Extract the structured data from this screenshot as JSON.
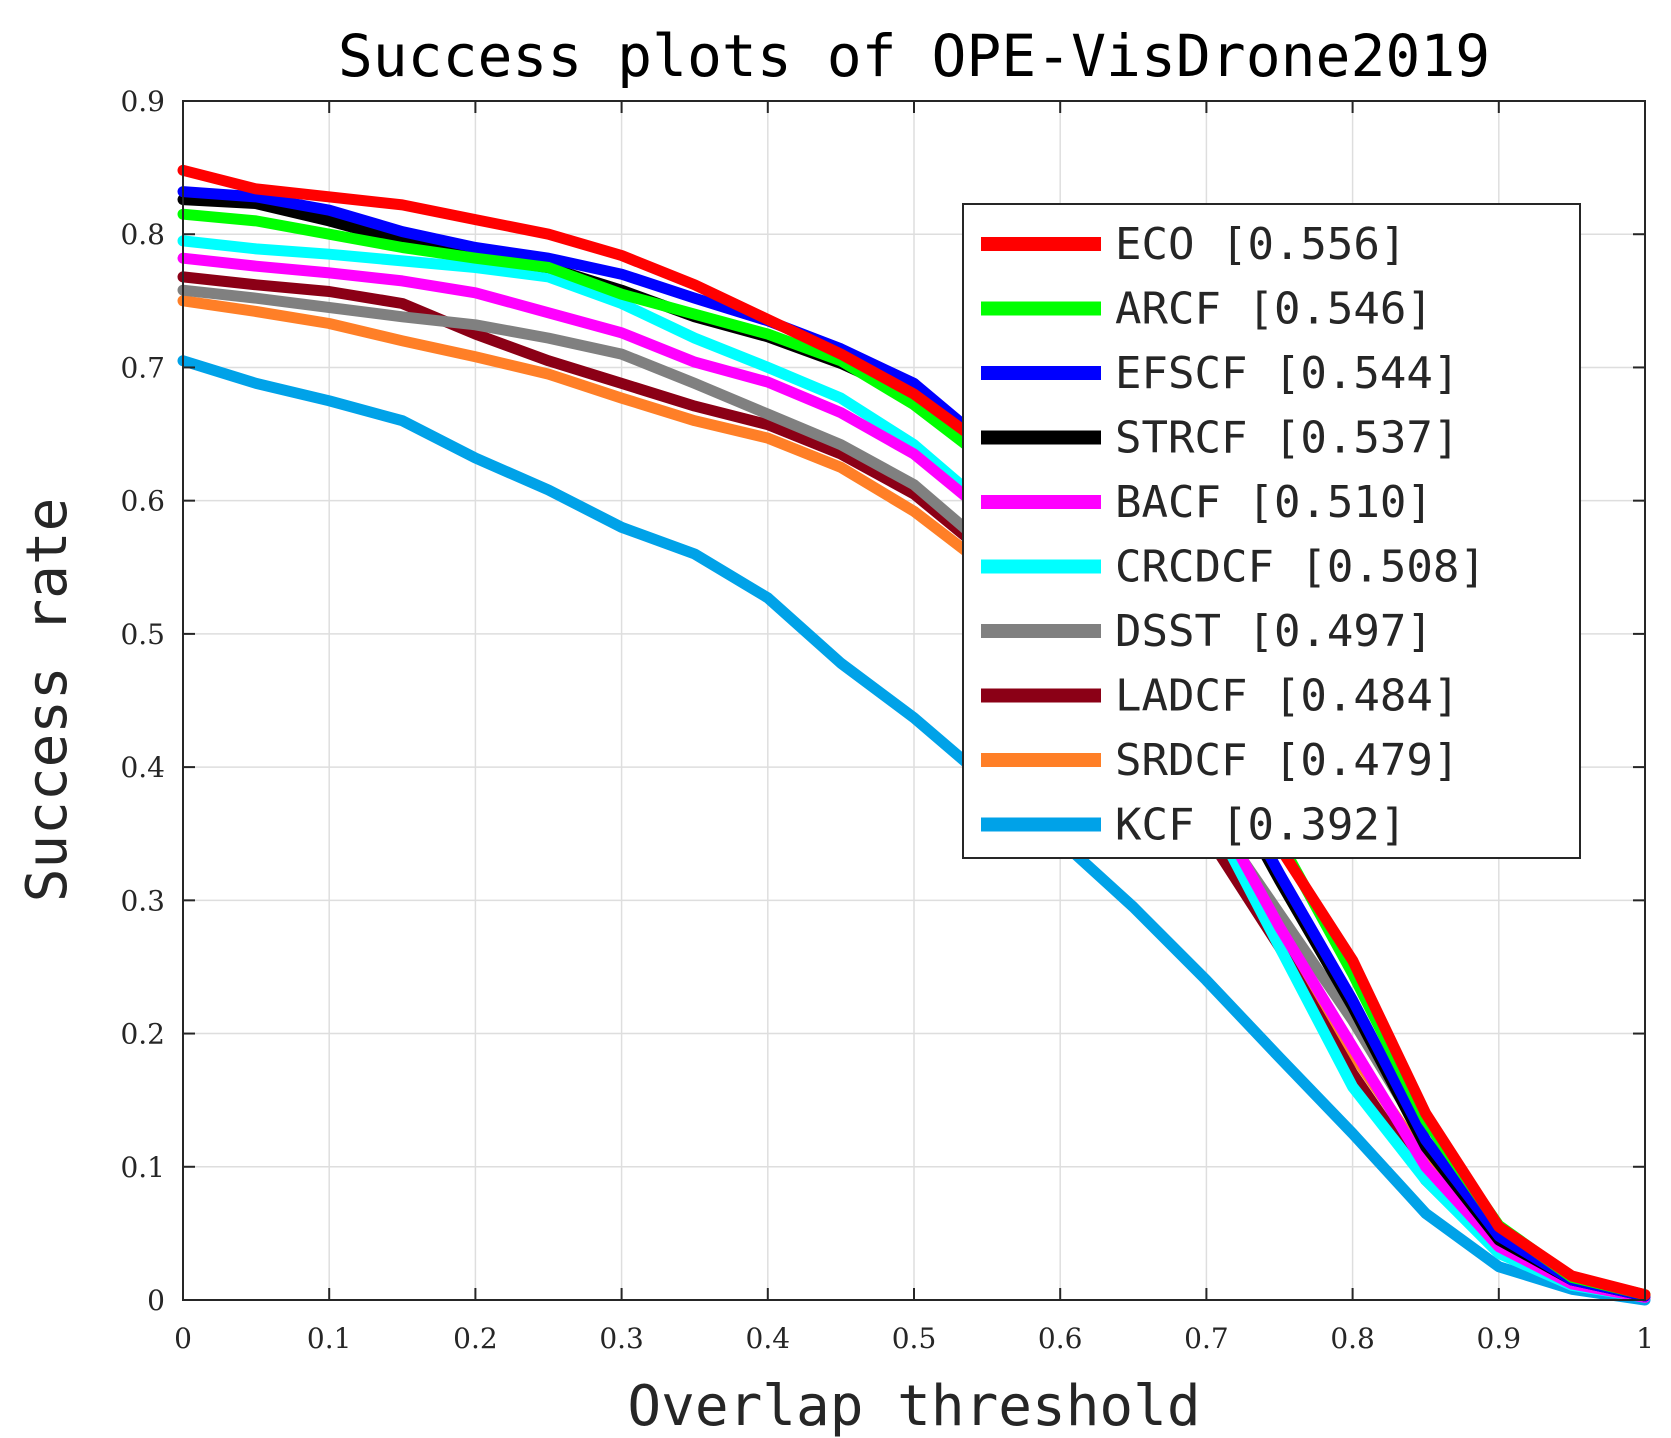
{
  "chart_data": {
    "type": "line",
    "title": "Success plots of OPE-VisDrone2019",
    "xlabel": "Overlap threshold",
    "ylabel": "Success rate",
    "xlim": [
      0,
      1
    ],
    "ylim": [
      0,
      0.9
    ],
    "xticks": [
      "0",
      "0.1",
      "0.2",
      "0.3",
      "0.4",
      "0.5",
      "0.6",
      "0.7",
      "0.8",
      "0.9",
      "1"
    ],
    "yticks": [
      "0",
      "0.1",
      "0.2",
      "0.3",
      "0.4",
      "0.5",
      "0.6",
      "0.7",
      "0.8",
      "0.9"
    ],
    "grid": true,
    "legend_position": "top-right",
    "x": [
      0,
      0.05,
      0.1,
      0.15,
      0.2,
      0.25,
      0.3,
      0.35,
      0.4,
      0.45,
      0.5,
      0.55,
      0.6,
      0.65,
      0.7,
      0.75,
      0.8,
      0.85,
      0.9,
      0.95,
      1.0
    ],
    "series": [
      {
        "name": "ECO [0.556]",
        "color": "#ff0000",
        "values": [
          0.848,
          0.834,
          0.828,
          0.822,
          0.811,
          0.8,
          0.784,
          0.762,
          0.736,
          0.71,
          0.68,
          0.64,
          0.59,
          0.53,
          0.44,
          0.34,
          0.255,
          0.14,
          0.055,
          0.018,
          0.004
        ]
      },
      {
        "name": "ARCF [0.546]",
        "color": "#00ff00",
        "values": [
          0.815,
          0.81,
          0.8,
          0.79,
          0.782,
          0.775,
          0.755,
          0.74,
          0.725,
          0.705,
          0.672,
          0.63,
          0.58,
          0.52,
          0.43,
          0.345,
          0.245,
          0.135,
          0.056,
          0.017,
          0.004
        ]
      },
      {
        "name": "EFSCF [0.544]",
        "color": "#0000ff",
        "values": [
          0.832,
          0.828,
          0.818,
          0.802,
          0.79,
          0.782,
          0.77,
          0.752,
          0.735,
          0.714,
          0.688,
          0.642,
          0.585,
          0.52,
          0.42,
          0.32,
          0.225,
          0.12,
          0.048,
          0.015,
          0.003
        ]
      },
      {
        "name": "STRCF [0.537]",
        "color": "#000000",
        "values": [
          0.826,
          0.823,
          0.81,
          0.795,
          0.783,
          0.775,
          0.758,
          0.738,
          0.723,
          0.703,
          0.678,
          0.635,
          0.578,
          0.51,
          0.415,
          0.315,
          0.22,
          0.115,
          0.045,
          0.015,
          0.003
        ]
      },
      {
        "name": "BACF [0.510]",
        "color": "#ff00ff",
        "values": [
          0.782,
          0.776,
          0.771,
          0.765,
          0.756,
          0.741,
          0.726,
          0.704,
          0.689,
          0.666,
          0.635,
          0.59,
          0.54,
          0.47,
          0.38,
          0.28,
          0.19,
          0.1,
          0.04,
          0.012,
          0.002
        ]
      },
      {
        "name": "CRCDCF [0.508]",
        "color": "#00ffff",
        "values": [
          0.795,
          0.789,
          0.785,
          0.78,
          0.775,
          0.768,
          0.748,
          0.722,
          0.7,
          0.677,
          0.642,
          0.595,
          0.545,
          0.475,
          0.37,
          0.265,
          0.16,
          0.09,
          0.035,
          0.011,
          0.002
        ]
      },
      {
        "name": "DSST [0.497]",
        "color": "#808080",
        "values": [
          0.758,
          0.752,
          0.745,
          0.738,
          0.732,
          0.722,
          0.71,
          0.688,
          0.665,
          0.642,
          0.612,
          0.565,
          0.51,
          0.445,
          0.37,
          0.29,
          0.21,
          0.12,
          0.05,
          0.015,
          0.003
        ]
      },
      {
        "name": "LADCF [0.484]",
        "color": "#8b0016",
        "values": [
          0.768,
          0.762,
          0.757,
          0.748,
          0.725,
          0.705,
          0.688,
          0.671,
          0.657,
          0.635,
          0.605,
          0.56,
          0.5,
          0.43,
          0.35,
          0.265,
          0.17,
          0.09,
          0.036,
          0.012,
          0.002
        ]
      },
      {
        "name": "SRDCF [0.479]",
        "color": "#ff7f27",
        "values": [
          0.75,
          0.742,
          0.733,
          0.72,
          0.708,
          0.695,
          0.677,
          0.66,
          0.647,
          0.625,
          0.592,
          0.55,
          0.495,
          0.43,
          0.355,
          0.275,
          0.185,
          0.105,
          0.044,
          0.013,
          0.003
        ]
      },
      {
        "name": "KCF [0.392]",
        "color": "#00a2e8",
        "values": [
          0.705,
          0.688,
          0.675,
          0.66,
          0.632,
          0.608,
          0.58,
          0.56,
          0.527,
          0.478,
          0.437,
          0.39,
          0.345,
          0.295,
          0.24,
          0.182,
          0.125,
          0.065,
          0.025,
          0.008,
          0.0
        ]
      }
    ]
  }
}
